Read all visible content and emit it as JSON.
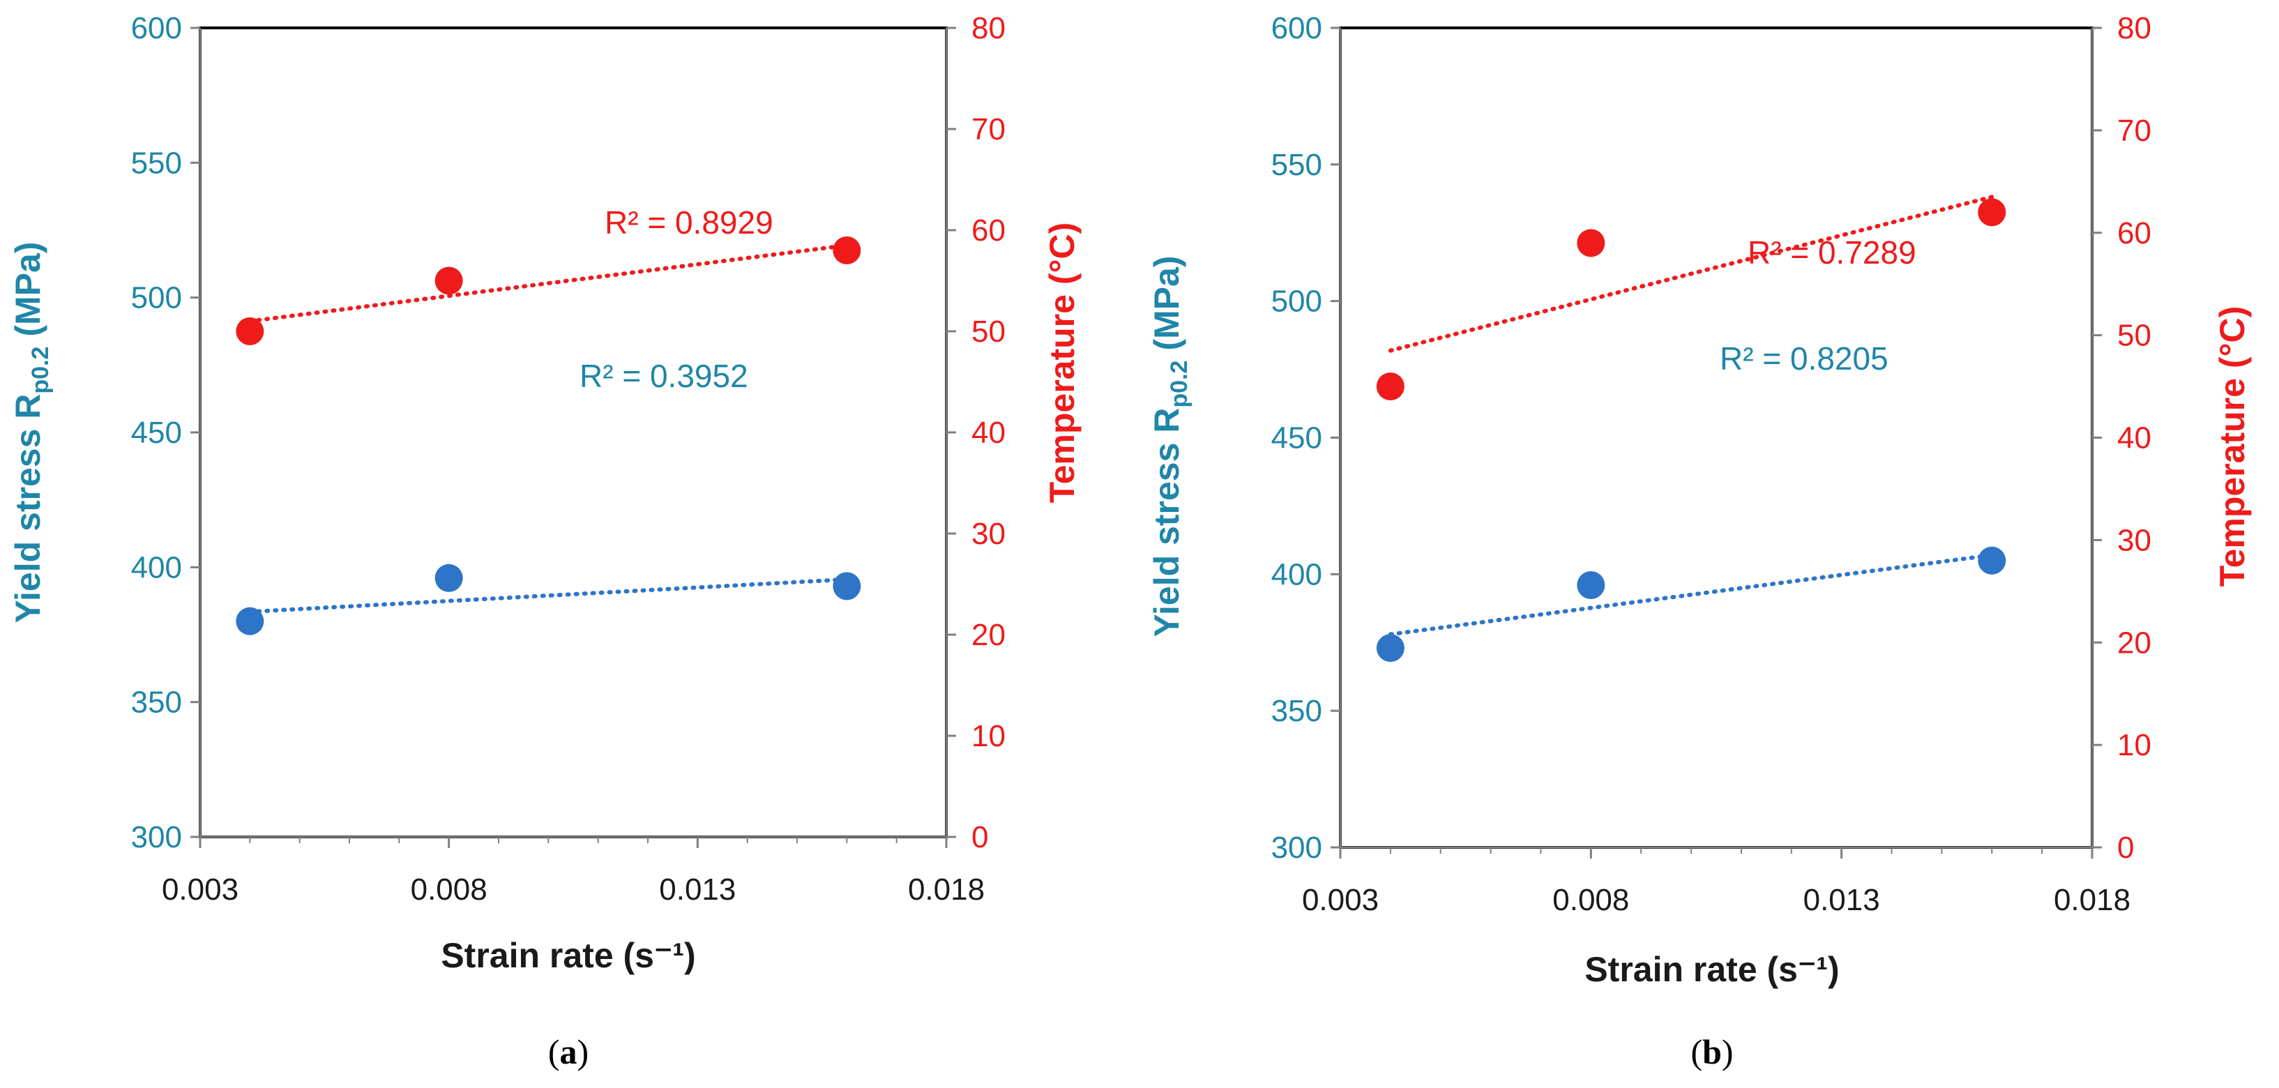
{
  "colors": {
    "yield": "#2e75c8",
    "yield_text": "#1f86a8",
    "temp": "#ef1b1b",
    "axis": "#7f7f7f",
    "frame": "#000000"
  },
  "chart_data": [
    {
      "type": "scatter",
      "panel": "a",
      "panel_label": "(a)",
      "panel_letter": "a",
      "xlabel": "Strain rate  (s⁻¹)",
      "ylabel_left": "Yield stress R",
      "ylabel_left_sub": "p0.2",
      "ylabel_left_unit": " (MPa)",
      "ylabel_right": "Temperature  (°C)",
      "xlim": [
        0.003,
        0.018
      ],
      "xticks": [
        "0.003",
        "0.008",
        "0.013",
        "0.018"
      ],
      "ylim_left": [
        300,
        600
      ],
      "yticks_left": [
        "300",
        "350",
        "400",
        "450",
        "500",
        "550",
        "600"
      ],
      "ylim_right": [
        0,
        80
      ],
      "yticks_right": [
        "0",
        "10",
        "20",
        "30",
        "40",
        "50",
        "60",
        "70",
        "80"
      ],
      "series": [
        {
          "name": "Yield stress",
          "axis": "left",
          "x": [
            0.004,
            0.008,
            0.016
          ],
          "y": [
            380,
            396,
            393
          ],
          "trend": [
            383.5,
            395.5
          ],
          "r2": "R² = 0.3952"
        },
        {
          "name": "Temperature",
          "axis": "right",
          "x": [
            0.004,
            0.008,
            0.016
          ],
          "y": [
            50,
            55,
            58
          ],
          "trend": [
            51,
            58.5
          ],
          "r2": "R² = 0.8929"
        }
      ]
    },
    {
      "type": "scatter",
      "panel": "b",
      "panel_label": "(b)",
      "panel_letter": "b",
      "xlabel": "Strain rate  (s⁻¹)",
      "ylabel_left": "Yield stress R",
      "ylabel_left_sub": "p0.2",
      "ylabel_left_unit": " (MPa)",
      "ylabel_right": "Temperature  (°C)",
      "xlim": [
        0.003,
        0.018
      ],
      "xticks": [
        "0.003",
        "0.008",
        "0.013",
        "0.018"
      ],
      "ylim_left": [
        300,
        600
      ],
      "yticks_left": [
        "300",
        "350",
        "400",
        "450",
        "500",
        "550",
        "600"
      ],
      "ylim_right": [
        0,
        80
      ],
      "yticks_right": [
        "0",
        "10",
        "20",
        "30",
        "40",
        "50",
        "60",
        "70",
        "80"
      ],
      "series": [
        {
          "name": "Yield stress",
          "axis": "left",
          "x": [
            0.004,
            0.008,
            0.016
          ],
          "y": [
            373,
            396,
            405
          ],
          "trend": [
            378,
            407
          ],
          "r2": "R² = 0.8205"
        },
        {
          "name": "Temperature",
          "axis": "right",
          "x": [
            0.004,
            0.008,
            0.016
          ],
          "y": [
            45,
            59,
            62
          ],
          "trend": [
            48.5,
            63.5
          ],
          "r2": "R² = 0.7289"
        }
      ]
    }
  ]
}
